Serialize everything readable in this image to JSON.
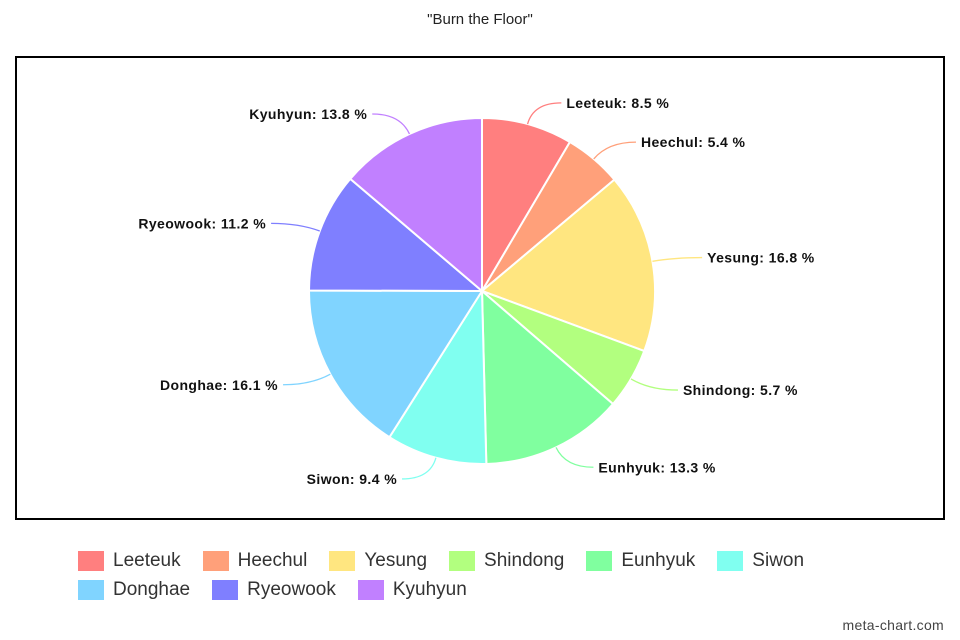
{
  "chart_data": {
    "type": "pie",
    "title": "\"Burn the Floor\"",
    "unit": "%",
    "slices": [
      {
        "name": "Leeteuk",
        "value": 8.5,
        "color": "#ff7f7f"
      },
      {
        "name": "Heechul",
        "value": 5.4,
        "color": "#ffa07a"
      },
      {
        "name": "Yesung",
        "value": 16.8,
        "color": "#ffe680"
      },
      {
        "name": "Shindong",
        "value": 5.7,
        "color": "#b2ff7f"
      },
      {
        "name": "Eunhyuk",
        "value": 13.3,
        "color": "#80ff9f"
      },
      {
        "name": "Siwon",
        "value": 9.4,
        "color": "#80fff0"
      },
      {
        "name": "Donghae",
        "value": 16.1,
        "color": "#80d4ff"
      },
      {
        "name": "Ryeowook",
        "value": 11.2,
        "color": "#7f7fff"
      },
      {
        "name": "Kyuhyun",
        "value": 13.8,
        "color": "#c180ff"
      }
    ],
    "legend_position": "bottom",
    "start_angle": "12 o'clock",
    "direction": "clockwise"
  },
  "watermark": "meta-chart.com"
}
